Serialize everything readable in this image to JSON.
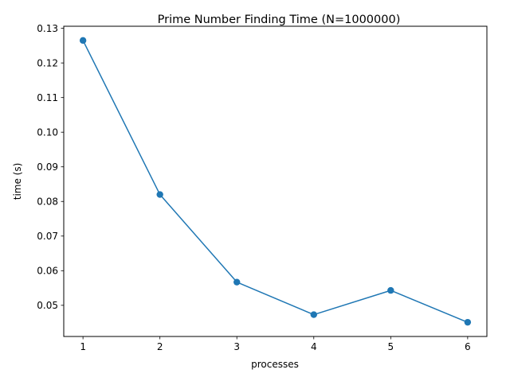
{
  "chart_data": {
    "type": "line",
    "title": "Prime Number Finding Time (N=1000000)",
    "xlabel": "processes",
    "ylabel": "time (s)",
    "x": [
      1,
      2,
      3,
      4,
      5,
      6
    ],
    "series": [
      {
        "values": [
          0.1265,
          0.082,
          0.0567,
          0.0473,
          0.0543,
          0.0451
        ],
        "color": "#1f77b4",
        "marker": "circle"
      }
    ],
    "xlim": [
      0.75,
      6.25
    ],
    "ylim": [
      0.041,
      0.1306
    ],
    "xticks": [
      "1",
      "2",
      "3",
      "4",
      "5",
      "6"
    ],
    "yticks": [
      "0.05",
      "0.06",
      "0.07",
      "0.08",
      "0.09",
      "0.10",
      "0.11",
      "0.12",
      "0.13"
    ],
    "grid": false,
    "legend": "none"
  }
}
